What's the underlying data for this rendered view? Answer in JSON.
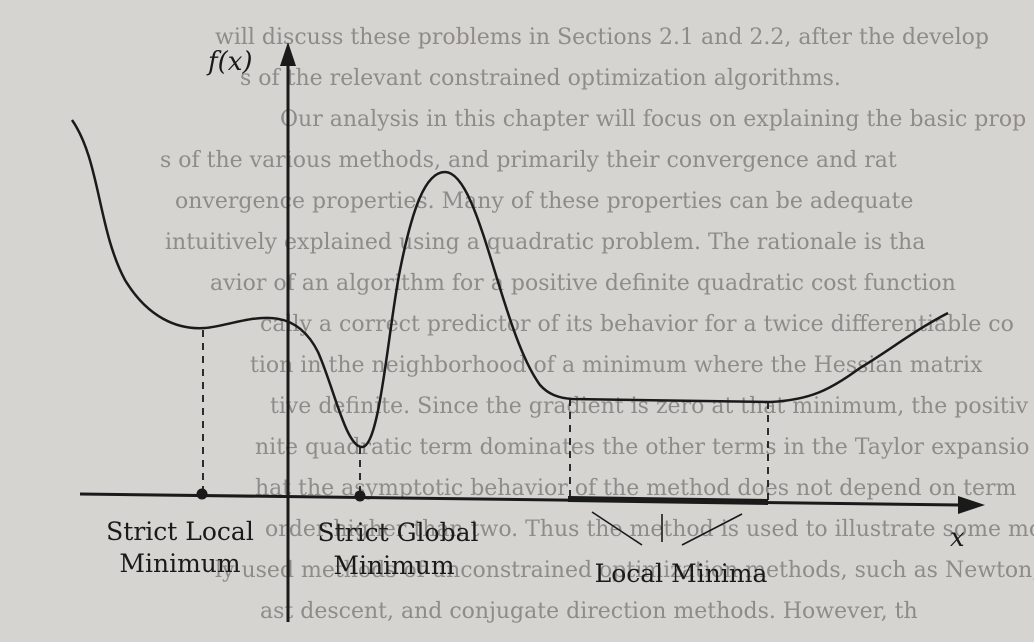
{
  "background_text": [
    "will discuss these problems in Sections 2.1 and 2.2, after the develop",
    "s of the relevant constrained optimization algorithms.",
    "Our analysis in this chapter will focus on explaining the basic prop",
    "s of the various methods, and primarily their convergence and rat",
    "onvergence properties. Many of these properties can be adequate",
    "intuitively explained using a quadratic problem. The rationale is tha",
    "avior of an algorithm for a positive definite quadratic cost function",
    "cally a correct predictor of its behavior for a twice differentiable co",
    "tion in the neighborhood of a minimum where the Hessian matrix",
    "tive definite. Since the gradient is zero at that minimum, the positiv",
    "nite quadratic term dominates the other terms in the Taylor expansio",
    "hat the asymptotic behavior of the method does not depend on term",
    "order higher than two. Thus the method is used to illustrate some mo",
    "ly used methods of unconstrained optimization methods, such as Newton, Gauss",
    "ast descent, and conjugate direction methods. However, th"
  ],
  "axes": {
    "y_label": "f(x)",
    "x_label": "x"
  },
  "labels": {
    "strict_local": {
      "line1": "Strict Local",
      "line2": "Minimum"
    },
    "strict_global": {
      "line1": "Strict Global",
      "line2": "Minimum"
    },
    "local_minima": "Local Minima"
  },
  "colors": {
    "ink": "#1a1a1a",
    "paper": "#d6d4d1",
    "faded_text": "#8e8c89"
  }
}
